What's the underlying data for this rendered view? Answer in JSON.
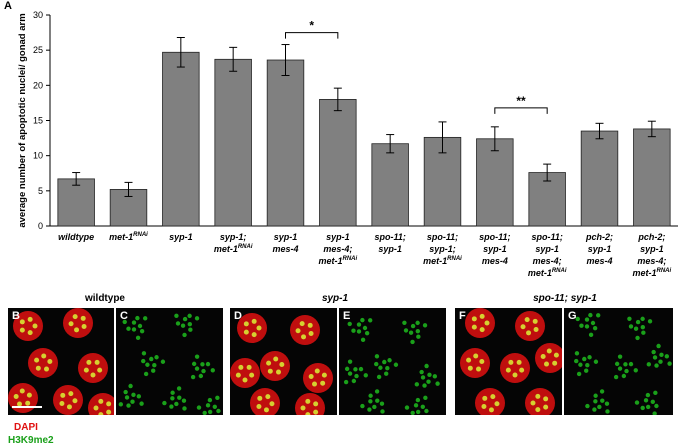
{
  "panel_label": "A",
  "chart_data": {
    "type": "bar",
    "ylabel": "average number of apoptotic nuclei/ gonad arm",
    "ylim": [
      0,
      30
    ],
    "yticks": [
      "0",
      "5",
      "10",
      "15",
      "20",
      "25",
      "30"
    ],
    "categories": [
      [
        {
          "t": "wildtype",
          "sup": ""
        }
      ],
      [
        {
          "t": "met-1",
          "sup": "RNAi"
        }
      ],
      [
        {
          "t": "syp-1",
          "sup": ""
        }
      ],
      [
        {
          "t": "syp-1;",
          "sup": ""
        },
        {
          "t": "met-1",
          "sup": "RNAi"
        }
      ],
      [
        {
          "t": "syp-1",
          "sup": ""
        },
        {
          "t": "mes-4",
          "sup": ""
        }
      ],
      [
        {
          "t": "syp-1",
          "sup": ""
        },
        {
          "t": "mes-4;",
          "sup": ""
        },
        {
          "t": "met-1",
          "sup": "RNAi"
        }
      ],
      [
        {
          "t": "spo-11;",
          "sup": ""
        },
        {
          "t": "syp-1",
          "sup": ""
        }
      ],
      [
        {
          "t": "spo-11;",
          "sup": ""
        },
        {
          "t": "syp-1;",
          "sup": ""
        },
        {
          "t": "met-1",
          "sup": "RNAi"
        }
      ],
      [
        {
          "t": "spo-11;",
          "sup": ""
        },
        {
          "t": "syp-1",
          "sup": ""
        },
        {
          "t": "mes-4",
          "sup": ""
        }
      ],
      [
        {
          "t": "spo-11;",
          "sup": ""
        },
        {
          "t": "syp-1",
          "sup": ""
        },
        {
          "t": "mes-4;",
          "sup": ""
        },
        {
          "t": "met-1",
          "sup": "RNAi"
        }
      ],
      [
        {
          "t": "pch-2;",
          "sup": ""
        },
        {
          "t": "syp-1",
          "sup": ""
        },
        {
          "t": "mes-4",
          "sup": ""
        }
      ],
      [
        {
          "t": "pch-2;",
          "sup": ""
        },
        {
          "t": "syp-1",
          "sup": ""
        },
        {
          "t": "mes-4;",
          "sup": ""
        },
        {
          "t": "met-1",
          "sup": "RNAi"
        }
      ]
    ],
    "values": [
      6.7,
      5.2,
      24.7,
      23.7,
      23.6,
      18.0,
      11.7,
      12.6,
      12.4,
      7.6,
      13.5,
      13.8
    ],
    "errors": [
      0.9,
      1.0,
      2.1,
      1.7,
      2.2,
      1.6,
      1.3,
      2.2,
      1.7,
      1.2,
      1.1,
      1.1
    ],
    "bar_color": "#808080",
    "significance": [
      {
        "from": 4,
        "to": 5,
        "label": "*",
        "y": 27.5
      },
      {
        "from": 8,
        "to": 9,
        "label": "**",
        "y": 16.8
      }
    ]
  },
  "micrographs": {
    "group_titles": [
      "wildtype",
      "syp-1",
      "spo-11; syp-1"
    ],
    "panels": [
      {
        "letter": "B",
        "stain": "merge"
      },
      {
        "letter": "C",
        "stain": "h3k9me2"
      },
      {
        "letter": "D",
        "stain": "merge"
      },
      {
        "letter": "E",
        "stain": "h3k9me2"
      },
      {
        "letter": "F",
        "stain": "merge"
      },
      {
        "letter": "G",
        "stain": "h3k9me2"
      }
    ],
    "legend": {
      "dapi": "DAPI",
      "h3k9me2": "H3K9me2"
    },
    "colors": {
      "dapi": "#e01010",
      "h3k9me2": "#1aa01a"
    }
  }
}
